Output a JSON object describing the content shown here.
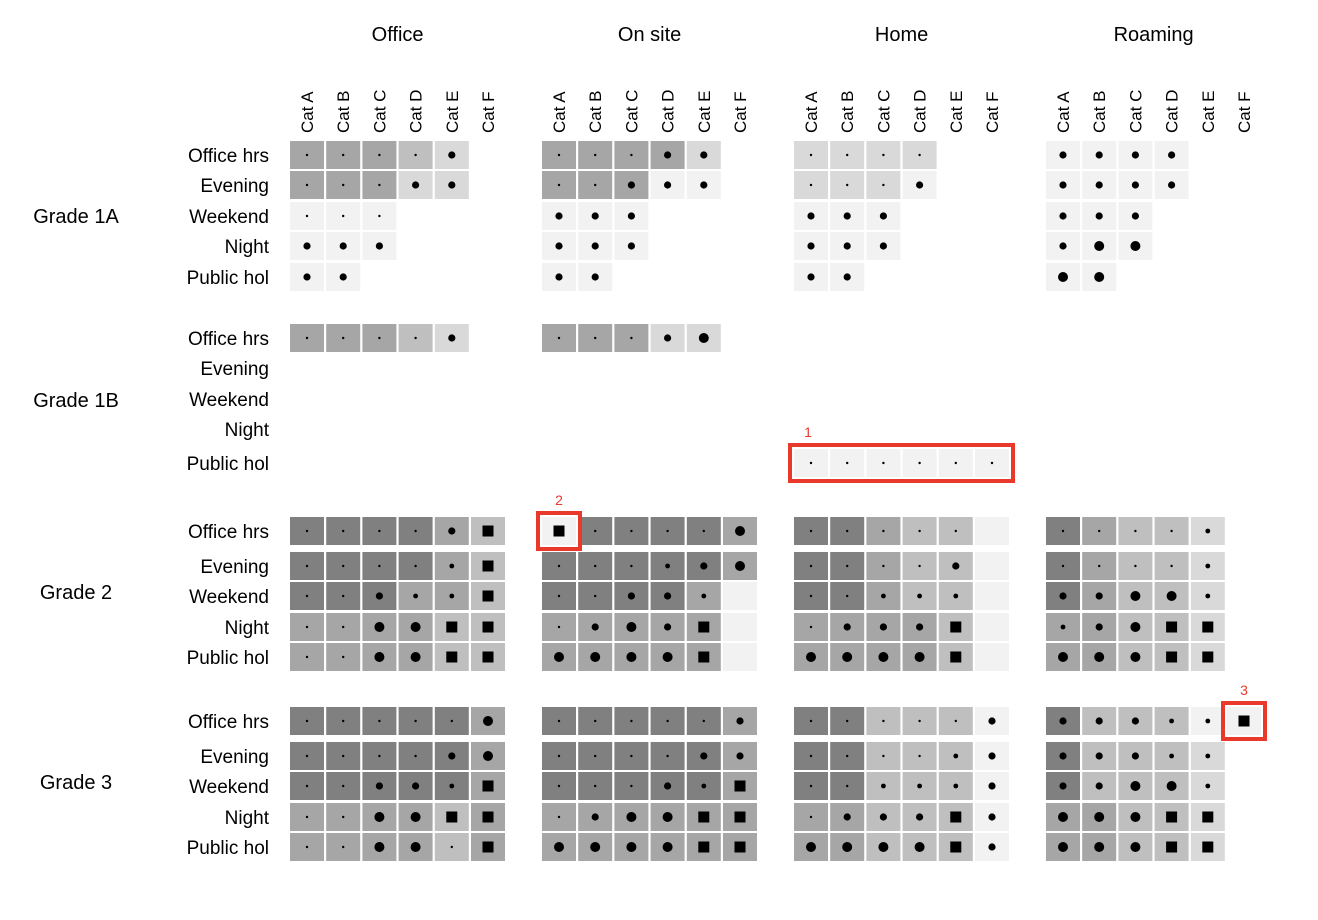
{
  "chart_data": {
    "type": "heatmap",
    "groups": [
      "Office",
      "On site",
      "Home",
      "Roaming"
    ],
    "categories": [
      "Cat A",
      "Cat B",
      "Cat C",
      "Cat D",
      "Cat E",
      "Cat F"
    ],
    "times": [
      "Office hrs",
      "Evening",
      "Weekend",
      "Night",
      "Public hol"
    ],
    "grades": [
      "Grade 1A",
      "Grade 1B",
      "Grade 2",
      "Grade 3"
    ],
    "encoding": {
      "fill_levels": {
        "0": "#f2f2f2",
        "1": "#d9d9d9",
        "2": "#bfbfbf",
        "3": "#a6a6a6",
        "4": "#808080"
      },
      "marker_levels": {
        "1": "tiny-dot",
        "2": "small-dot",
        "3": "medium-dot",
        "4": "large-dot",
        "5": "square"
      }
    },
    "cells": {
      "Grade 1A": {
        "Office": [
          [
            3,
            1,
            3,
            1,
            3,
            1,
            2,
            1,
            1,
            3,
            null,
            null
          ],
          [
            3,
            1,
            3,
            1,
            3,
            1,
            1,
            3,
            1,
            3,
            null,
            null
          ],
          [
            0,
            1,
            0,
            1,
            0,
            1,
            null,
            null,
            null,
            null,
            null,
            null
          ],
          [
            0,
            3,
            0,
            3,
            0,
            3,
            null,
            null,
            null,
            null,
            null,
            null
          ],
          [
            0,
            3,
            0,
            3,
            null,
            null,
            null,
            null,
            null,
            null,
            null,
            null
          ]
        ],
        "On site": [
          [
            3,
            1,
            3,
            1,
            3,
            1,
            3,
            3,
            1,
            3,
            null,
            null
          ],
          [
            3,
            1,
            3,
            1,
            3,
            3,
            0,
            3,
            0,
            3,
            null,
            null
          ],
          [
            0,
            3,
            0,
            3,
            0,
            3,
            null,
            null,
            null,
            null,
            null,
            null
          ],
          [
            0,
            3,
            0,
            3,
            0,
            3,
            null,
            null,
            null,
            null,
            null,
            null
          ],
          [
            0,
            3,
            0,
            3,
            null,
            null,
            null,
            null,
            null,
            null,
            null,
            null
          ]
        ],
        "Home": [
          [
            1,
            1,
            1,
            1,
            1,
            1,
            1,
            1,
            null,
            null,
            null,
            null
          ],
          [
            1,
            1,
            1,
            1,
            1,
            1,
            0,
            3,
            null,
            null,
            null,
            null
          ],
          [
            0,
            3,
            0,
            3,
            0,
            3,
            null,
            null,
            null,
            null,
            null,
            null
          ],
          [
            0,
            3,
            0,
            3,
            0,
            3,
            null,
            null,
            null,
            null,
            null,
            null
          ],
          [
            0,
            3,
            0,
            3,
            null,
            null,
            null,
            null,
            null,
            null,
            null,
            null
          ]
        ],
        "Roaming": [
          [
            0,
            3,
            0,
            3,
            0,
            3,
            0,
            3,
            null,
            null,
            null,
            null
          ],
          [
            0,
            3,
            0,
            3,
            0,
            3,
            0,
            3,
            null,
            null,
            null,
            null
          ],
          [
            0,
            3,
            0,
            3,
            0,
            3,
            null,
            null,
            null,
            null,
            null,
            null
          ],
          [
            0,
            3,
            0,
            4,
            0,
            4,
            null,
            null,
            null,
            null,
            null,
            null
          ],
          [
            0,
            4,
            0,
            4,
            null,
            null,
            null,
            null,
            null,
            null,
            null,
            null
          ]
        ]
      },
      "Grade 1B": {
        "Office": [
          [
            3,
            1,
            3,
            1,
            3,
            1,
            2,
            1,
            1,
            3,
            null,
            null
          ],
          [
            null,
            null,
            null,
            null,
            null,
            null,
            null,
            null,
            null,
            null,
            null,
            null
          ],
          [
            null,
            null,
            null,
            null,
            null,
            null,
            null,
            null,
            null,
            null,
            null,
            null
          ],
          [
            null,
            null,
            null,
            null,
            null,
            null,
            null,
            null,
            null,
            null,
            null,
            null
          ],
          [
            null,
            null,
            null,
            null,
            null,
            null,
            null,
            null,
            null,
            null,
            null,
            null
          ]
        ],
        "On site": [
          [
            3,
            1,
            3,
            1,
            3,
            1,
            1,
            3,
            1,
            4,
            null,
            null
          ],
          [
            null,
            null,
            null,
            null,
            null,
            null,
            null,
            null,
            null,
            null,
            null,
            null
          ],
          [
            null,
            null,
            null,
            null,
            null,
            null,
            null,
            null,
            null,
            null,
            null,
            null
          ],
          [
            null,
            null,
            null,
            null,
            null,
            null,
            null,
            null,
            null,
            null,
            null,
            null
          ],
          [
            null,
            null,
            null,
            null,
            null,
            null,
            null,
            null,
            null,
            null,
            null,
            null
          ]
        ],
        "Home": [
          [
            null,
            null,
            null,
            null,
            null,
            null,
            null,
            null,
            null,
            null,
            null,
            null
          ],
          [
            null,
            null,
            null,
            null,
            null,
            null,
            null,
            null,
            null,
            null,
            null,
            null
          ],
          [
            null,
            null,
            null,
            null,
            null,
            null,
            null,
            null,
            null,
            null,
            null,
            null
          ],
          [
            null,
            null,
            null,
            null,
            null,
            null,
            null,
            null,
            null,
            null,
            null,
            null
          ],
          [
            0,
            1,
            0,
            1,
            0,
            1,
            0,
            1,
            0,
            1,
            0,
            1
          ]
        ],
        "Roaming": [
          [
            null,
            null,
            null,
            null,
            null,
            null,
            null,
            null,
            null,
            null,
            null,
            null
          ],
          [
            null,
            null,
            null,
            null,
            null,
            null,
            null,
            null,
            null,
            null,
            null,
            null
          ],
          [
            null,
            null,
            null,
            null,
            null,
            null,
            null,
            null,
            null,
            null,
            null,
            null
          ],
          [
            null,
            null,
            null,
            null,
            null,
            null,
            null,
            null,
            null,
            null,
            null,
            null
          ],
          [
            null,
            null,
            null,
            null,
            null,
            null,
            null,
            null,
            null,
            null,
            null,
            null
          ]
        ]
      },
      "Grade 2": {
        "Office": [
          [
            4,
            1,
            4,
            1,
            4,
            1,
            4,
            1,
            3,
            3,
            2,
            5
          ],
          [
            4,
            1,
            4,
            1,
            4,
            1,
            4,
            1,
            3,
            2,
            2,
            5
          ],
          [
            4,
            1,
            4,
            1,
            4,
            3,
            3,
            2,
            3,
            2,
            2,
            5
          ],
          [
            3,
            1,
            3,
            1,
            3,
            4,
            3,
            4,
            2,
            5,
            2,
            5
          ],
          [
            3,
            1,
            3,
            1,
            3,
            4,
            3,
            4,
            2,
            5,
            2,
            5
          ]
        ],
        "On site": [
          [
            0,
            5,
            4,
            1,
            4,
            1,
            4,
            1,
            4,
            1,
            3,
            4
          ],
          [
            4,
            1,
            4,
            1,
            4,
            1,
            4,
            2,
            4,
            3,
            3,
            4
          ],
          [
            4,
            1,
            4,
            1,
            4,
            3,
            4,
            3,
            3,
            2,
            0,
            null
          ],
          [
            3,
            1,
            3,
            3,
            3,
            4,
            3,
            3,
            3,
            5,
            0,
            null
          ],
          [
            3,
            4,
            3,
            4,
            3,
            4,
            3,
            4,
            3,
            5,
            0,
            null
          ]
        ],
        "Home": [
          [
            4,
            1,
            4,
            1,
            3,
            1,
            2,
            1,
            2,
            1,
            0,
            null
          ],
          [
            4,
            1,
            4,
            1,
            3,
            1,
            2,
            1,
            2,
            3,
            0,
            null
          ],
          [
            4,
            1,
            4,
            1,
            3,
            2,
            2,
            2,
            2,
            2,
            0,
            null
          ],
          [
            3,
            1,
            3,
            3,
            3,
            3,
            3,
            3,
            2,
            5,
            0,
            null
          ],
          [
            3,
            4,
            3,
            4,
            3,
            4,
            3,
            4,
            2,
            5,
            0,
            null
          ]
        ],
        "Roaming": [
          [
            4,
            1,
            3,
            1,
            2,
            1,
            2,
            1,
            1,
            2,
            null,
            null
          ],
          [
            4,
            1,
            3,
            1,
            2,
            1,
            2,
            1,
            1,
            2,
            null,
            null
          ],
          [
            4,
            3,
            3,
            3,
            2,
            4,
            2,
            4,
            1,
            2,
            null,
            null
          ],
          [
            3,
            2,
            3,
            3,
            2,
            4,
            2,
            5,
            1,
            5,
            null,
            null
          ],
          [
            3,
            4,
            3,
            4,
            2,
            4,
            2,
            5,
            1,
            5,
            null,
            null
          ]
        ]
      },
      "Grade 3": {
        "Office": [
          [
            4,
            1,
            4,
            1,
            4,
            1,
            4,
            1,
            4,
            1,
            3,
            4
          ],
          [
            4,
            1,
            4,
            1,
            4,
            1,
            4,
            1,
            4,
            3,
            3,
            4
          ],
          [
            4,
            1,
            4,
            1,
            4,
            3,
            4,
            3,
            4,
            2,
            3,
            5
          ],
          [
            3,
            1,
            3,
            1,
            3,
            4,
            3,
            4,
            2,
            5,
            3,
            5
          ],
          [
            3,
            1,
            3,
            1,
            3,
            4,
            3,
            4,
            2,
            1,
            3,
            5
          ]
        ],
        "On site": [
          [
            4,
            1,
            4,
            1,
            4,
            1,
            4,
            1,
            4,
            1,
            3,
            3
          ],
          [
            4,
            1,
            4,
            1,
            4,
            1,
            4,
            1,
            4,
            3,
            3,
            3
          ],
          [
            4,
            1,
            4,
            1,
            4,
            1,
            4,
            3,
            4,
            2,
            3,
            5
          ],
          [
            3,
            1,
            3,
            3,
            3,
            4,
            3,
            4,
            3,
            5,
            3,
            5
          ],
          [
            3,
            4,
            3,
            4,
            3,
            4,
            3,
            4,
            3,
            5,
            3,
            5
          ]
        ],
        "Home": [
          [
            4,
            1,
            4,
            1,
            2,
            1,
            2,
            1,
            2,
            1,
            0,
            3
          ],
          [
            4,
            1,
            4,
            1,
            2,
            1,
            2,
            1,
            2,
            2,
            0,
            3
          ],
          [
            4,
            1,
            4,
            1,
            2,
            2,
            2,
            2,
            2,
            2,
            0,
            3
          ],
          [
            3,
            1,
            3,
            3,
            2,
            3,
            2,
            3,
            2,
            5,
            0,
            3
          ],
          [
            3,
            4,
            3,
            4,
            2,
            4,
            2,
            4,
            2,
            5,
            0,
            3
          ]
        ],
        "Roaming": [
          [
            4,
            3,
            2,
            3,
            2,
            3,
            2,
            2,
            0,
            2,
            0,
            5
          ],
          [
            4,
            3,
            2,
            3,
            2,
            3,
            2,
            2,
            1,
            2,
            null,
            null
          ],
          [
            4,
            3,
            2,
            3,
            2,
            4,
            2,
            4,
            1,
            2,
            null,
            null
          ],
          [
            3,
            4,
            3,
            4,
            2,
            4,
            2,
            5,
            1,
            5,
            null,
            null
          ],
          [
            3,
            4,
            3,
            4,
            2,
            4,
            2,
            5,
            1,
            5,
            null,
            null
          ]
        ]
      }
    },
    "callouts": [
      {
        "label": "1",
        "grade": "Grade 1B",
        "group": "Home",
        "time": "Public hol",
        "from_category": "Cat A",
        "to_category": "Cat F"
      },
      {
        "label": "2",
        "grade": "Grade 2",
        "group": "On site",
        "time": "Office hrs",
        "from_category": "Cat A",
        "to_category": "Cat A"
      },
      {
        "label": "3",
        "grade": "Grade 3",
        "group": "Roaming",
        "time": "Office hrs",
        "from_category": "Cat F",
        "to_category": "Cat F"
      }
    ],
    "colors": {
      "callout": "#e8392b"
    },
    "legend": "none",
    "grid": false
  }
}
